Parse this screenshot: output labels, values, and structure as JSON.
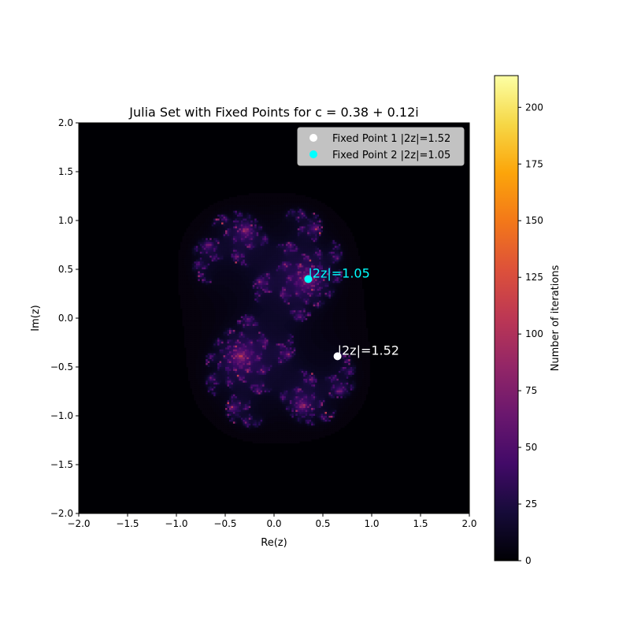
{
  "chart_data": {
    "type": "heatmap",
    "title": "Julia Set with Fixed Points for c = 0.38 + 0.12i",
    "xlabel": "Re(z)",
    "ylabel": "Im(z)",
    "xlim": [
      -2.0,
      2.0
    ],
    "ylim": [
      -2.0,
      2.0
    ],
    "x_ticks": [
      "−2.0",
      "−1.5",
      "−1.0",
      "−0.5",
      "0.0",
      "0.5",
      "1.0",
      "1.5",
      "2.0"
    ],
    "y_ticks": [
      "−2.0",
      "−1.5",
      "−1.0",
      "−0.5",
      "0.0",
      "0.5",
      "1.0",
      "1.5",
      "2.0"
    ],
    "x_tick_values": [
      -2.0,
      -1.5,
      -1.0,
      -0.5,
      0.0,
      0.5,
      1.0,
      1.5,
      2.0
    ],
    "y_tick_values": [
      -2.0,
      -1.5,
      -1.0,
      -0.5,
      0.0,
      0.5,
      1.0,
      1.5,
      2.0
    ],
    "c": {
      "re": 0.38,
      "im": 0.12
    },
    "colormap": "inferno",
    "colorbar": {
      "label": "Number of iterations",
      "range": [
        0,
        214
      ],
      "ticks": [
        "0",
        "25",
        "50",
        "75",
        "100",
        "125",
        "150",
        "175",
        "200"
      ],
      "tick_values": [
        0,
        25,
        50,
        75,
        100,
        125,
        150,
        175,
        200
      ]
    },
    "fixed_points": [
      {
        "name": "Fixed Point 1 |2z|=1.52",
        "re": 0.65,
        "im": -0.39,
        "color": "#ffffff",
        "label": "|2z|=1.52"
      },
      {
        "name": "Fixed Point 2 |2z|=1.05",
        "re": 0.35,
        "im": 0.4,
        "color": "#00ffff",
        "label": "|2z|=1.05"
      }
    ],
    "legend_location": "upper right"
  }
}
